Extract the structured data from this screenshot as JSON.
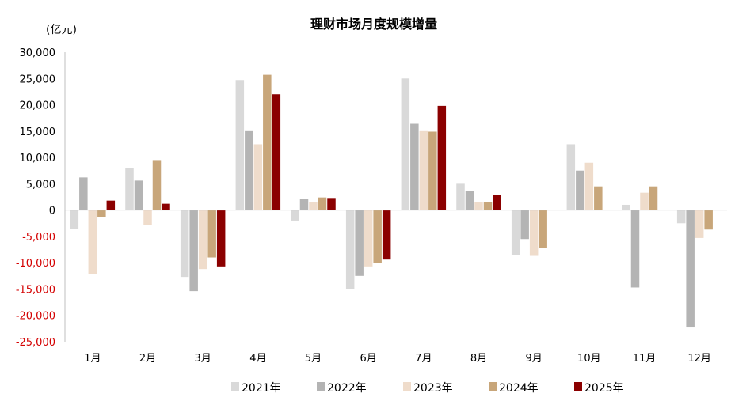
{
  "chart_data": {
    "type": "bar",
    "title": "理财市场月度规模增量",
    "unit_label": "(亿元)",
    "categories": [
      "1月",
      "2月",
      "3月",
      "4月",
      "5月",
      "6月",
      "7月",
      "8月",
      "9月",
      "10月",
      "11月",
      "12月"
    ],
    "ylim": [
      -25000,
      30000
    ],
    "yticks": [
      30000,
      25000,
      20000,
      15000,
      10000,
      5000,
      0,
      -5000,
      -10000,
      -15000,
      -20000,
      -25000
    ],
    "ytick_labels": [
      "30,000",
      "25,000",
      "20,000",
      "15,000",
      "10,000",
      "5,000",
      "0",
      "-5,000",
      "-10,000",
      "-15,000",
      "-20,000",
      "-25,000"
    ],
    "positive_tick_color": "#000000",
    "negative_tick_color": "#d40000",
    "grid": false,
    "legend_position": "bottom",
    "series": [
      {
        "name": "2021年",
        "color": "#d9d9d9",
        "values": [
          -3600,
          8000,
          -12700,
          24700,
          -2000,
          -15000,
          25000,
          5000,
          -8500,
          12500,
          1000,
          -2500
        ]
      },
      {
        "name": "2022年",
        "color": "#b4b4b4",
        "values": [
          6200,
          5600,
          -15400,
          15000,
          2100,
          -12500,
          16400,
          3600,
          -5500,
          7500,
          -14700,
          -22300
        ]
      },
      {
        "name": "2023年",
        "color": "#efdccb",
        "values": [
          -12200,
          -2900,
          -11200,
          12500,
          1500,
          -10700,
          15000,
          1500,
          -8700,
          9000,
          3300,
          -5300
        ]
      },
      {
        "name": "2024年",
        "color": "#c8a67a",
        "values": [
          -1300,
          9500,
          -9000,
          25700,
          2400,
          -10000,
          14900,
          1500,
          -7200,
          4500,
          4500,
          -3700
        ]
      },
      {
        "name": "2025年",
        "color": "#8b0000",
        "values": [
          1800,
          1200,
          -10700,
          22000,
          2300,
          -9400,
          19800,
          2900,
          null,
          null,
          null,
          null
        ]
      }
    ]
  }
}
